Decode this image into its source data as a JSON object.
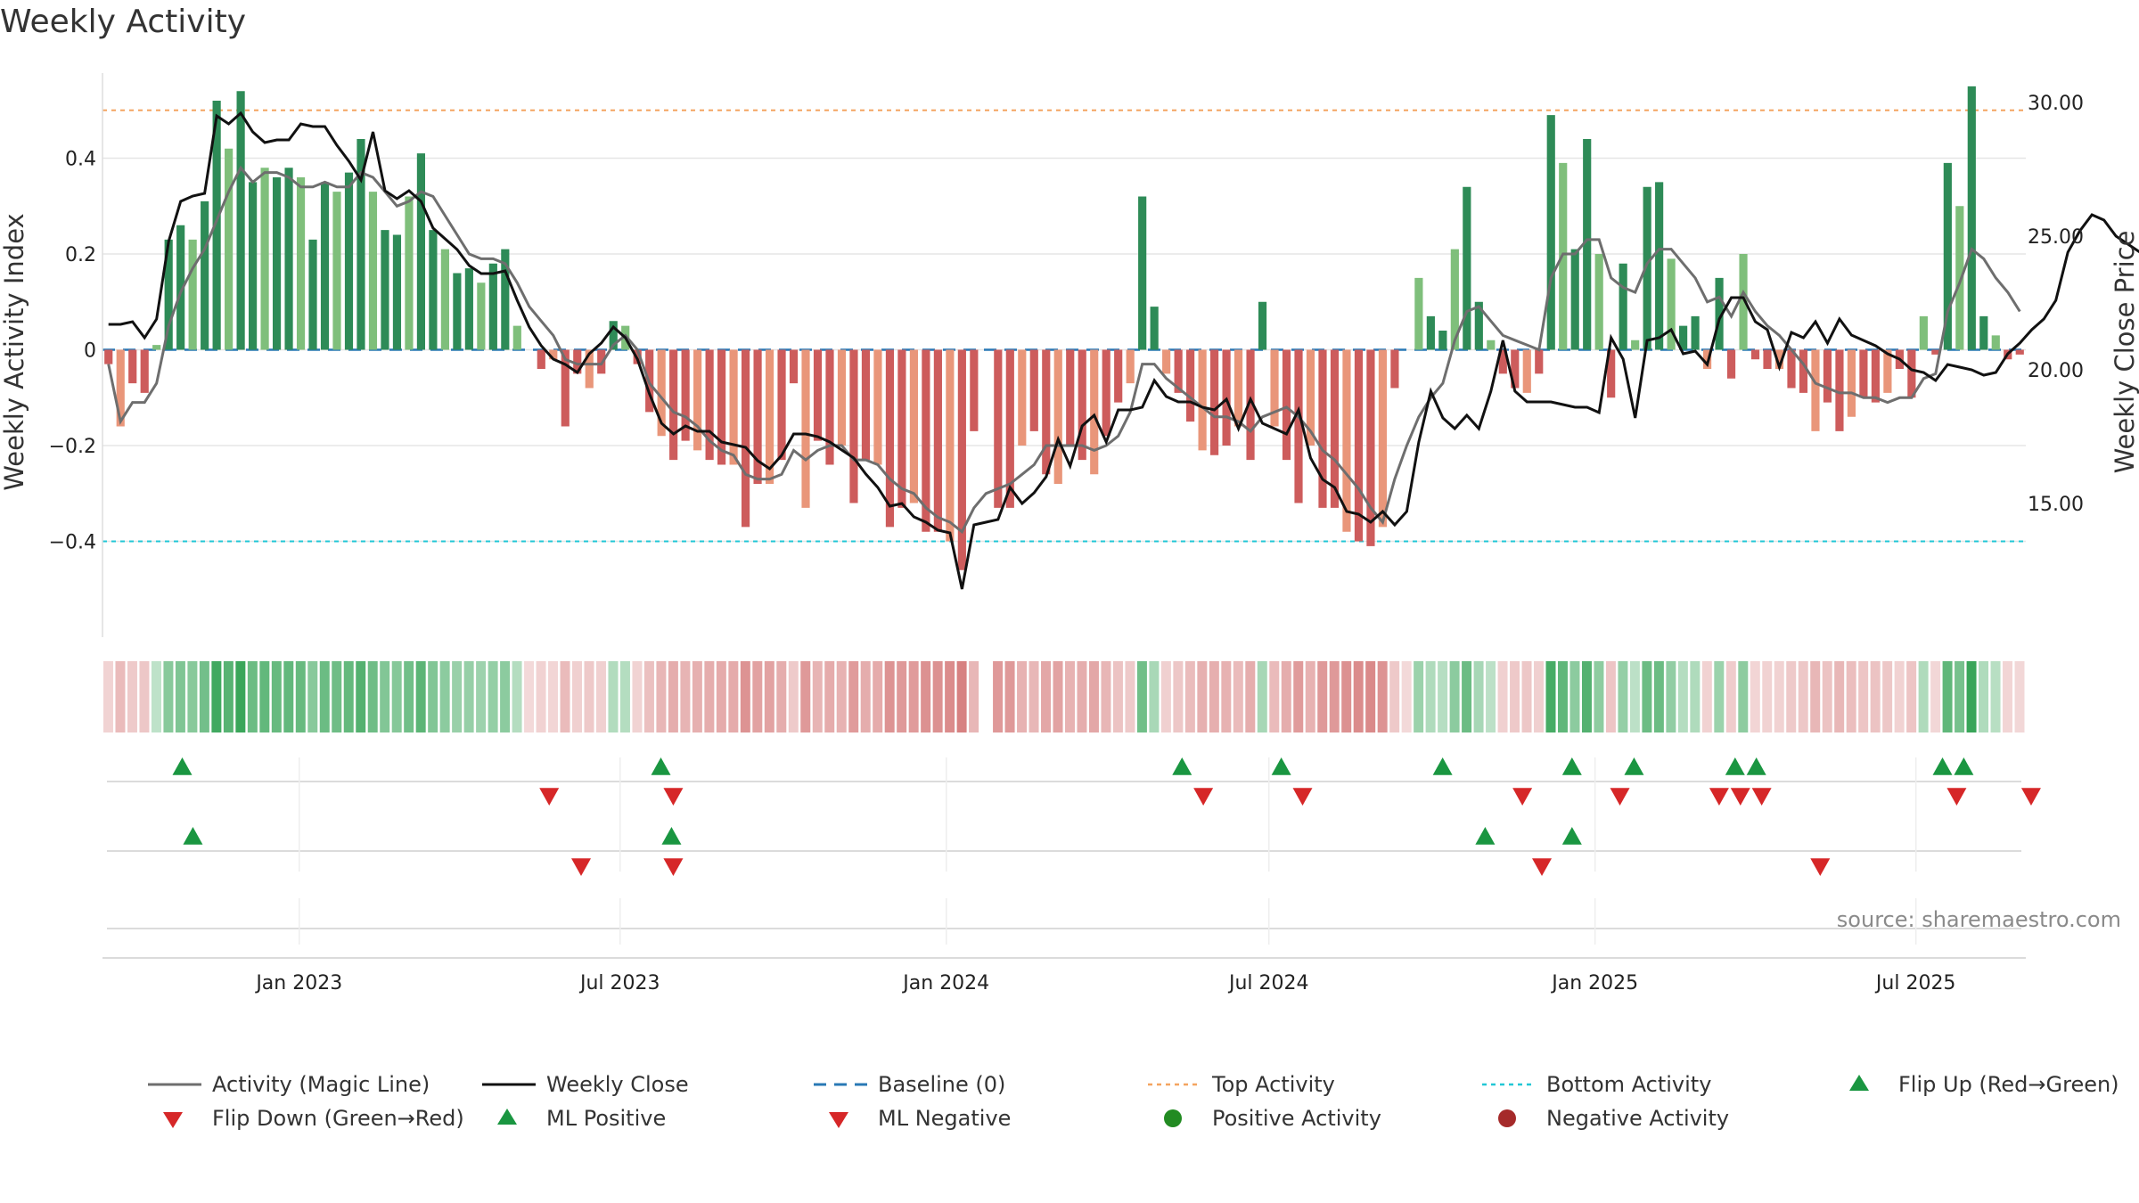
{
  "title": "Weekly Activity",
  "source": "source: sharemaestro.com",
  "colors": {
    "pos_strong": "#2e8b57",
    "pos_light": "#7fbf7b",
    "neg_strong": "#cd5c5c",
    "neg_light": "#e9967a",
    "magic": "#6e6e6e",
    "close": "#111111",
    "baseline": "#2878b5",
    "top": "#f4a460",
    "bottom": "#22c7d6",
    "up": "#1a9641",
    "down": "#d62728",
    "grid": "#e6e6e6"
  },
  "chart_data": {
    "type": "bar",
    "title": "Weekly Activity",
    "ylabel": "Weekly Activity Index",
    "y2label": "Weekly Close Price",
    "ylim": [
      -0.6,
      0.6
    ],
    "y2lim": [
      10.0,
      31.5
    ],
    "yticks": [
      0.4,
      0.2,
      0,
      -0.2,
      -0.4
    ],
    "ytick_labels": [
      "0.4",
      "0.2",
      "0",
      "−0.2",
      "−0.4"
    ],
    "y2ticks": [
      30,
      25,
      20,
      15
    ],
    "y2tick_labels": [
      "30.00",
      "25.00",
      "20.00",
      "15.00"
    ],
    "top_activity": 0.5,
    "bottom_activity": -0.4,
    "start_date": "2022-09-12",
    "end_date": "2025-09-01",
    "date_ticks": [
      {
        "label": "Jan 2023",
        "date": "2023-01-01"
      },
      {
        "label": "Jul 2023",
        "date": "2023-07-01"
      },
      {
        "label": "Jan 2024",
        "date": "2024-01-01"
      },
      {
        "label": "Jul 2024",
        "date": "2024-07-01"
      },
      {
        "label": "Jan 2025",
        "date": "2025-01-01"
      },
      {
        "label": "Jul 2025",
        "date": "2025-07-01"
      }
    ],
    "series": [
      {
        "name": "Weekly Activity Index",
        "type": "bar",
        "values": [
          -0.03,
          -0.16,
          -0.07,
          -0.09,
          0.01,
          0.23,
          0.26,
          0.23,
          0.31,
          0.52,
          0.42,
          0.54,
          0.35,
          0.38,
          0.36,
          0.38,
          0.36,
          0.23,
          0.35,
          0.33,
          0.37,
          0.44,
          0.33,
          0.25,
          0.24,
          0.32,
          0.41,
          0.25,
          0.21,
          0.16,
          0.17,
          0.14,
          0.18,
          0.21,
          0.05,
          0.0,
          -0.04,
          -0.02,
          -0.16,
          -0.05,
          -0.08,
          -0.05,
          0.06,
          0.05,
          -0.03,
          -0.13,
          -0.18,
          -0.23,
          -0.19,
          -0.21,
          -0.23,
          -0.24,
          -0.24,
          -0.37,
          -0.28,
          -0.28,
          -0.23,
          -0.07,
          -0.33,
          -0.19,
          -0.24,
          -0.2,
          -0.32,
          -0.23,
          -0.24,
          -0.37,
          -0.33,
          -0.32,
          -0.38,
          -0.38,
          -0.4,
          -0.46,
          -0.17,
          0.0,
          -0.33,
          -0.33,
          -0.2,
          -0.17,
          -0.26,
          -0.28,
          -0.2,
          -0.23,
          -0.26,
          -0.18,
          -0.11,
          -0.07,
          0.32,
          0.09,
          -0.05,
          -0.09,
          -0.15,
          -0.21,
          -0.22,
          -0.2,
          -0.16,
          -0.23,
          0.1,
          -0.16,
          -0.23,
          -0.32,
          -0.2,
          -0.33,
          -0.33,
          -0.38,
          -0.4,
          -0.41,
          -0.37,
          -0.08,
          0.0,
          0.15,
          0.07,
          0.04,
          0.21,
          0.34,
          0.1,
          0.02,
          -0.05,
          -0.08,
          -0.09,
          -0.05,
          0.49,
          0.39,
          0.21,
          0.44,
          0.2,
          -0.1,
          0.18,
          0.02,
          0.34,
          0.35,
          0.19,
          0.05,
          0.07,
          -0.04,
          0.15,
          -0.06,
          0.2,
          -0.02,
          -0.04,
          -0.04,
          -0.08,
          -0.09,
          -0.17,
          -0.11,
          -0.17,
          -0.14,
          -0.1,
          -0.11,
          -0.09,
          -0.04,
          -0.1,
          0.07,
          -0.01,
          0.39,
          0.3,
          0.55,
          0.07,
          0.03,
          -0.02,
          -0.01
        ]
      },
      {
        "name": "Activity (Magic Line)",
        "type": "line",
        "values": [
          -0.03,
          -0.15,
          -0.11,
          -0.11,
          -0.07,
          0.05,
          0.12,
          0.17,
          0.21,
          0.27,
          0.33,
          0.38,
          0.35,
          0.37,
          0.37,
          0.36,
          0.34,
          0.34,
          0.35,
          0.34,
          0.34,
          0.37,
          0.36,
          0.33,
          0.3,
          0.31,
          0.33,
          0.32,
          0.28,
          0.24,
          0.2,
          0.19,
          0.19,
          0.18,
          0.14,
          0.09,
          0.06,
          0.03,
          -0.02,
          -0.03,
          -0.03,
          -0.03,
          0.01,
          0.03,
          0.0,
          -0.07,
          -0.1,
          -0.13,
          -0.14,
          -0.16,
          -0.19,
          -0.21,
          -0.22,
          -0.26,
          -0.27,
          -0.27,
          -0.26,
          -0.21,
          -0.23,
          -0.21,
          -0.2,
          -0.2,
          -0.23,
          -0.23,
          -0.24,
          -0.27,
          -0.29,
          -0.3,
          -0.33,
          -0.35,
          -0.36,
          -0.38,
          -0.33,
          -0.3,
          -0.29,
          -0.28,
          -0.26,
          -0.24,
          -0.2,
          -0.2,
          -0.2,
          -0.2,
          -0.21,
          -0.2,
          -0.18,
          -0.13,
          -0.03,
          -0.03,
          -0.06,
          -0.08,
          -0.1,
          -0.12,
          -0.14,
          -0.14,
          -0.15,
          -0.17,
          -0.14,
          -0.13,
          -0.12,
          -0.14,
          -0.17,
          -0.21,
          -0.23,
          -0.26,
          -0.29,
          -0.33,
          -0.36,
          -0.27,
          -0.2,
          -0.14,
          -0.1,
          -0.07,
          0.02,
          0.08,
          0.09,
          0.06,
          0.03,
          0.02,
          0.01,
          0.0,
          0.15,
          0.2,
          0.2,
          0.23,
          0.23,
          0.15,
          0.13,
          0.12,
          0.18,
          0.21,
          0.21,
          0.18,
          0.15,
          0.1,
          0.11,
          0.07,
          0.12,
          0.08,
          0.05,
          0.03,
          0.0,
          -0.03,
          -0.07,
          -0.08,
          -0.09,
          -0.09,
          -0.1,
          -0.1,
          -0.11,
          -0.1,
          -0.1,
          -0.06,
          -0.05,
          0.08,
          0.14,
          0.21,
          0.19,
          0.15,
          0.12,
          0.08
        ]
      },
      {
        "name": "Weekly Close",
        "type": "line",
        "axis": "right",
        "values": [
          21.7,
          21.7,
          21.8,
          21.2,
          21.9,
          24.8,
          26.3,
          26.5,
          26.6,
          29.5,
          29.2,
          29.6,
          28.9,
          28.5,
          28.6,
          28.6,
          29.2,
          29.1,
          29.1,
          28.4,
          27.8,
          27.1,
          28.9,
          26.7,
          26.4,
          26.7,
          26.3,
          25.3,
          24.9,
          24.5,
          23.9,
          23.6,
          23.6,
          23.7,
          22.6,
          21.6,
          20.9,
          20.4,
          20.2,
          19.9,
          20.6,
          21.0,
          21.6,
          21.2,
          20.4,
          19.1,
          18.0,
          17.6,
          17.9,
          17.7,
          17.7,
          17.3,
          17.2,
          17.1,
          16.6,
          16.3,
          16.8,
          17.6,
          17.6,
          17.5,
          17.3,
          17.0,
          16.7,
          16.1,
          15.6,
          14.9,
          15.0,
          14.5,
          14.3,
          14.0,
          13.9,
          11.8,
          14.2,
          14.3,
          14.4,
          15.6,
          15.0,
          15.4,
          16.0,
          17.4,
          16.4,
          17.9,
          18.3,
          17.3,
          18.5,
          18.5,
          18.6,
          19.6,
          19.0,
          18.8,
          18.8,
          18.6,
          18.5,
          18.9,
          17.8,
          18.9,
          18.0,
          17.8,
          17.6,
          18.5,
          16.7,
          15.9,
          15.6,
          14.7,
          14.6,
          14.3,
          14.7,
          14.2,
          14.7,
          17.3,
          19.2,
          18.2,
          17.8,
          18.3,
          17.8,
          19.2,
          21.1,
          19.2,
          18.8,
          18.8,
          18.8,
          18.7,
          18.6,
          18.6,
          18.4,
          21.2,
          20.4,
          18.2,
          21.1,
          21.2,
          21.5,
          20.6,
          20.7,
          20.2,
          21.9,
          22.7,
          22.7,
          21.8,
          21.5,
          20.1,
          21.4,
          21.2,
          21.8,
          21.0,
          21.9,
          21.3,
          21.1,
          20.9,
          20.6,
          20.4,
          20.0,
          19.9,
          19.6,
          20.2,
          20.1,
          20.0,
          19.8,
          19.9,
          20.6,
          21.0,
          21.5,
          21.9,
          22.6,
          24.4,
          25.2,
          25.8,
          25.6,
          25.0,
          24.7,
          24.4,
          23.5,
          23.6
        ]
      }
    ],
    "reference_lines": [
      {
        "name": "Baseline (0)",
        "value": 0
      },
      {
        "name": "Top Activity",
        "value": 0.5
      },
      {
        "name": "Bottom Activity",
        "value": -0.4
      }
    ],
    "heat_strip": "weekly activity color band",
    "markers": {
      "flip_up": [
        "2022-10-27",
        "2023-07-24",
        "2024-05-13",
        "2024-07-08",
        "2024-10-07",
        "2024-12-19",
        "2025-01-23",
        "2025-03-21",
        "2025-04-02",
        "2025-07-16",
        "2025-07-28"
      ],
      "flip_down": [
        "2023-05-22",
        "2023-07-31",
        "2024-05-25",
        "2024-07-20",
        "2024-11-21",
        "2025-01-15",
        "2025-03-12",
        "2025-03-24",
        "2025-04-05",
        "2025-07-24",
        "2025-09-04"
      ],
      "ml_positive": [
        "2022-11-02",
        "2023-07-30",
        "2024-10-31",
        "2024-12-19"
      ],
      "ml_negative": [
        "2023-06-09",
        "2023-07-31",
        "2024-12-02",
        "2025-05-08"
      ]
    }
  },
  "legend": [
    {
      "label": "Activity (Magic Line)",
      "kind": "line"
    },
    {
      "label": "Weekly Close",
      "kind": "line"
    },
    {
      "label": "Baseline (0)",
      "kind": "dash"
    },
    {
      "label": "Top Activity",
      "kind": "dot"
    },
    {
      "label": "Bottom Activity",
      "kind": "dot"
    },
    {
      "label": "Flip Up (Red→Green)",
      "kind": "tri-up"
    },
    {
      "label": "Flip Down (Green→Red)",
      "kind": "tri-down"
    },
    {
      "label": "ML Positive",
      "kind": "tri-up"
    },
    {
      "label": "ML Negative",
      "kind": "tri-down"
    },
    {
      "label": "Positive Activity",
      "kind": "circle-pos"
    },
    {
      "label": "Negative Activity",
      "kind": "circle-neg"
    }
  ]
}
